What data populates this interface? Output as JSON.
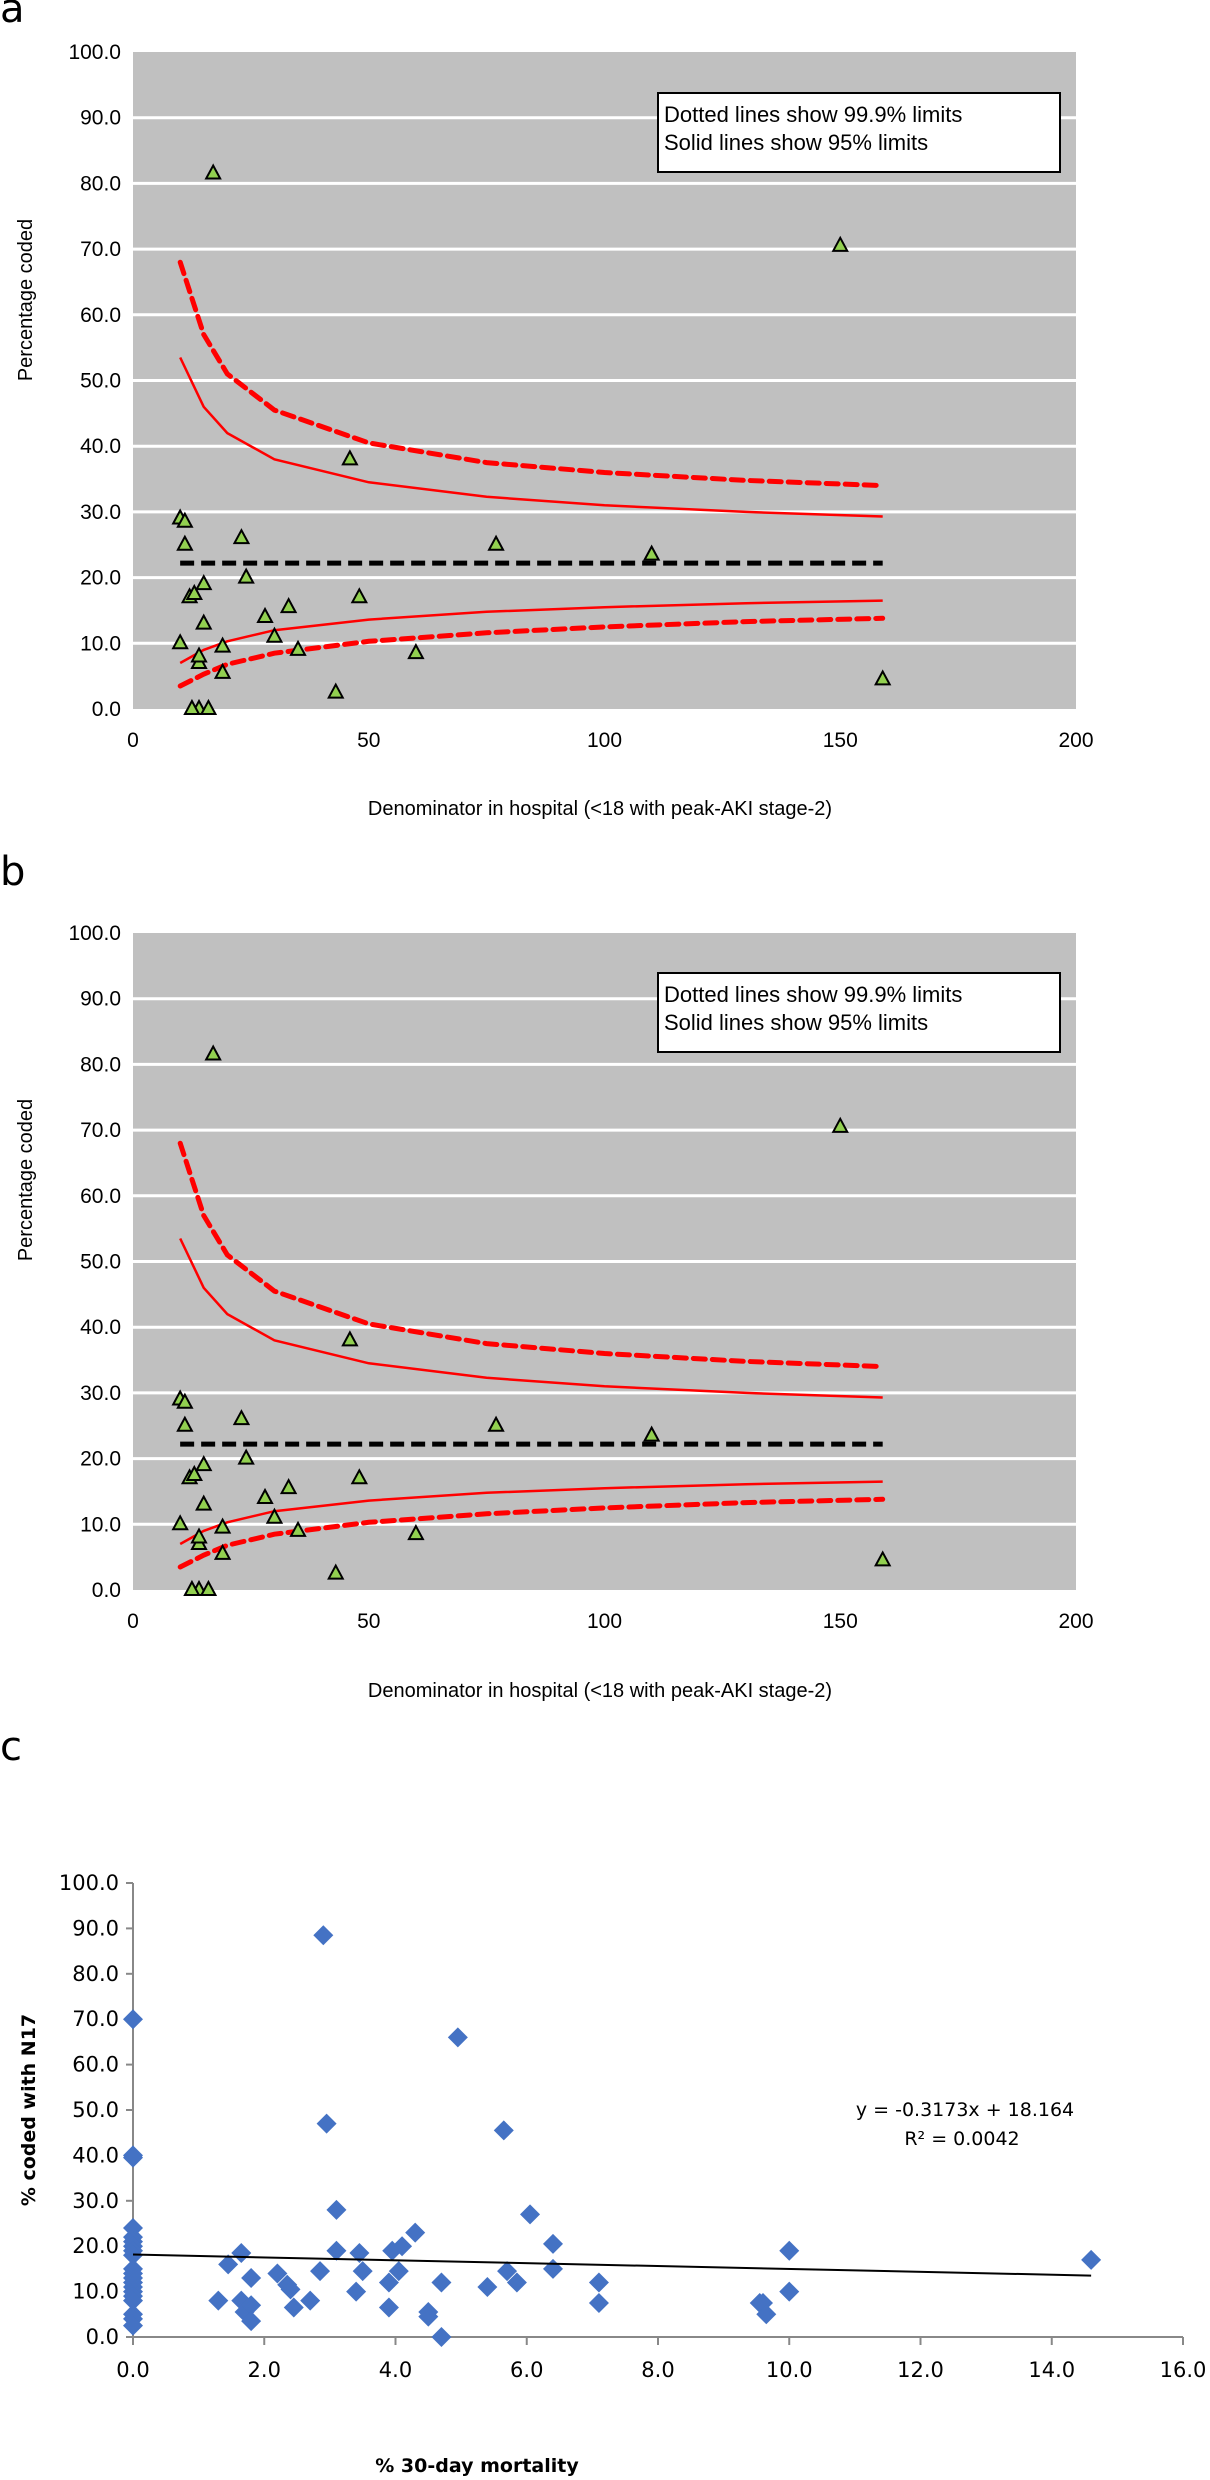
{
  "chart_data": [
    {
      "panel": "a",
      "type": "scatter",
      "title": "",
      "xlabel": "Denominator in hospital (<18 with peak-AKI stage-2)",
      "ylabel": "Percentage coded",
      "xlim": [
        0,
        200
      ],
      "ylim": [
        0,
        100
      ],
      "x_ticks": [
        "0",
        "50",
        "100",
        "150",
        "200"
      ],
      "y_ticks": [
        "0.0",
        "10.0",
        "20.0",
        "30.0",
        "40.0",
        "50.0",
        "60.0",
        "70.0",
        "80.0",
        "90.0",
        "100.0"
      ],
      "grid": true,
      "background": "#c0c0c0",
      "annotation": [
        "Dotted lines show 99.9% limits",
        "Solid lines show 95% limits"
      ],
      "mean_line": 22.2,
      "limits_x_range": [
        10,
        159
      ],
      "series": [
        {
          "name": "Hospitals",
          "marker": "triangle",
          "color": "#92d050",
          "points": [
            [
              10,
              29
            ],
            [
              11,
              28.5
            ],
            [
              11,
              25
            ],
            [
              12,
              17
            ],
            [
              13,
              17.5
            ],
            [
              14,
              7
            ],
            [
              14,
              8
            ],
            [
              15,
              19
            ],
            [
              15,
              13
            ],
            [
              14,
              0
            ],
            [
              16,
              0
            ],
            [
              17,
              81.5
            ],
            [
              10,
              10
            ],
            [
              19,
              9.5
            ],
            [
              19,
              5.5
            ],
            [
              23,
              26
            ],
            [
              24,
              20
            ],
            [
              28,
              14
            ],
            [
              30,
              11
            ],
            [
              33,
              15.5
            ],
            [
              35,
              9
            ],
            [
              43,
              2.5
            ],
            [
              46,
              38
            ],
            [
              48,
              17
            ],
            [
              60,
              8.5
            ],
            [
              77,
              25
            ],
            [
              110,
              23.5
            ],
            [
              150,
              70.5
            ],
            [
              159,
              4.5
            ],
            [
              12.5,
              0
            ]
          ]
        },
        {
          "name": "Upper 99.9% limit",
          "style": "dotted",
          "color": "#ff0000",
          "points": [
            [
              10,
              68
            ],
            [
              15,
              57
            ],
            [
              20,
              51
            ],
            [
              30,
              45.5
            ],
            [
              50,
              40.5
            ],
            [
              75,
              37.5
            ],
            [
              100,
              36
            ],
            [
              130,
              34.8
            ],
            [
              159,
              34
            ]
          ]
        },
        {
          "name": "Upper 95% limit",
          "style": "solid",
          "color": "#ff0000",
          "points": [
            [
              10,
              53.5
            ],
            [
              15,
              46
            ],
            [
              20,
              42
            ],
            [
              30,
              38
            ],
            [
              50,
              34.5
            ],
            [
              75,
              32.3
            ],
            [
              100,
              31
            ],
            [
              130,
              30
            ],
            [
              159,
              29.3
            ]
          ]
        },
        {
          "name": "Lower 95% limit",
          "style": "solid",
          "color": "#ff0000",
          "points": [
            [
              10,
              7
            ],
            [
              15,
              9
            ],
            [
              20,
              10.3
            ],
            [
              30,
              12
            ],
            [
              50,
              13.6
            ],
            [
              75,
              14.8
            ],
            [
              100,
              15.5
            ],
            [
              130,
              16.1
            ],
            [
              159,
              16.5
            ]
          ]
        },
        {
          "name": "Lower 99.9% limit",
          "style": "dotted",
          "color": "#ff0000",
          "points": [
            [
              10,
              3.5
            ],
            [
              15,
              5.3
            ],
            [
              20,
              6.8
            ],
            [
              30,
              8.5
            ],
            [
              50,
              10.3
            ],
            [
              75,
              11.6
            ],
            [
              100,
              12.5
            ],
            [
              130,
              13.3
            ],
            [
              159,
              13.8
            ]
          ]
        }
      ]
    },
    {
      "panel": "b",
      "type": "scatter",
      "title": "",
      "xlabel": "Denominator in hospital (<18 with peak-AKI stage-2)",
      "ylabel": "Percentage coded",
      "xlim": [
        0,
        200
      ],
      "ylim": [
        0,
        100
      ],
      "x_ticks": [
        "0",
        "50",
        "100",
        "150",
        "200"
      ],
      "y_ticks": [
        "0.0",
        "10.0",
        "20.0",
        "30.0",
        "40.0",
        "50.0",
        "60.0",
        "70.0",
        "80.0",
        "90.0",
        "100.0"
      ],
      "grid": true,
      "background": "#c0c0c0",
      "annotation": [
        "Dotted lines show 99.9% limits",
        "Solid lines show 95% limits"
      ],
      "mean_line": 22.2,
      "series_ref": "same as panel a"
    },
    {
      "panel": "c",
      "type": "scatter",
      "title": "",
      "xlabel": "% 30-day mortality",
      "ylabel": "% coded with N17",
      "xlim": [
        0,
        16
      ],
      "ylim": [
        0,
        100
      ],
      "x_ticks": [
        "0.0",
        "2.0",
        "4.0",
        "6.0",
        "8.0",
        "10.0",
        "12.0",
        "14.0",
        "16.0"
      ],
      "y_ticks": [
        "0.0",
        "10.0",
        "20.0",
        "30.0",
        "40.0",
        "50.0",
        "60.0",
        "70.0",
        "80.0",
        "90.0",
        "100.0"
      ],
      "grid": false,
      "trendline": {
        "slope": -0.3173,
        "intercept": 18.164,
        "x_range": [
          0,
          14.6
        ]
      },
      "equation": "y = -0.3173x + 18.164",
      "r2_label": "R² = 0.0042",
      "series": [
        {
          "name": "Hospitals",
          "marker": "diamond",
          "color": "#4472c4",
          "points": [
            [
              0,
              70
            ],
            [
              0,
              40
            ],
            [
              0,
              39.5
            ],
            [
              0,
              24
            ],
            [
              0,
              22
            ],
            [
              0,
              21
            ],
            [
              0,
              20
            ],
            [
              0,
              19
            ],
            [
              0,
              18
            ],
            [
              0,
              15
            ],
            [
              0,
              14
            ],
            [
              0,
              13
            ],
            [
              0,
              12
            ],
            [
              0,
              11
            ],
            [
              0,
              10
            ],
            [
              0,
              9
            ],
            [
              0,
              8
            ],
            [
              0,
              5
            ],
            [
              0,
              4
            ],
            [
              0,
              2.5
            ],
            [
              1.3,
              8
            ],
            [
              1.45,
              16
            ],
            [
              1.65,
              18.5
            ],
            [
              1.65,
              8
            ],
            [
              1.7,
              5.5
            ],
            [
              1.8,
              7
            ],
            [
              1.8,
              13
            ],
            [
              1.8,
              3.5
            ],
            [
              2.2,
              14
            ],
            [
              2.35,
              11.5
            ],
            [
              2.4,
              10.5
            ],
            [
              2.45,
              6.5
            ],
            [
              2.7,
              8
            ],
            [
              2.85,
              14.5
            ],
            [
              2.9,
              88.5
            ],
            [
              2.95,
              47
            ],
            [
              3.1,
              28
            ],
            [
              3.1,
              19
            ],
            [
              3.4,
              10
            ],
            [
              3.45,
              18.5
            ],
            [
              3.5,
              14.5
            ],
            [
              3.9,
              6.5
            ],
            [
              3.9,
              12
            ],
            [
              3.95,
              19
            ],
            [
              4.05,
              14.5
            ],
            [
              4.1,
              20
            ],
            [
              4.3,
              23
            ],
            [
              4.5,
              5.5
            ],
            [
              4.5,
              4.5
            ],
            [
              4.7,
              12
            ],
            [
              4.7,
              0
            ],
            [
              4.95,
              66
            ],
            [
              5.4,
              11
            ],
            [
              5.65,
              45.5
            ],
            [
              5.7,
              14.5
            ],
            [
              5.85,
              12
            ],
            [
              6.05,
              27
            ],
            [
              6.4,
              20.5
            ],
            [
              6.4,
              15
            ],
            [
              7.1,
              12
            ],
            [
              7.1,
              7.5
            ],
            [
              9.55,
              7.5
            ],
            [
              9.6,
              7.5
            ],
            [
              9.65,
              5
            ],
            [
              10,
              19
            ],
            [
              10,
              10
            ],
            [
              14.6,
              17
            ]
          ]
        }
      ]
    }
  ],
  "panels": {
    "a": {
      "letter": "a"
    },
    "b": {
      "letter": "b"
    },
    "c": {
      "letter": "c"
    }
  }
}
